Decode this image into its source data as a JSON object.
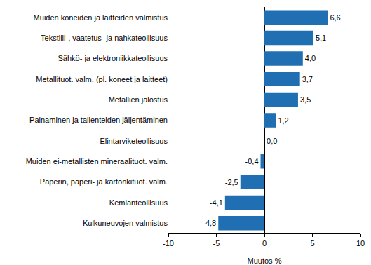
{
  "chart_data": {
    "type": "bar",
    "orientation": "horizontal",
    "categories": [
      "Muiden koneiden ja laitteiden valmistus",
      "Tekstiili-, vaatetus- ja nahkateollisuus",
      "Sähkö- ja elektroniikkateollisuus",
      "Metallituot. valm. (pl. koneet ja laitteet)",
      "Metallien jalostus",
      "Painaminen ja tallenteiden jäljentäminen",
      "Elintarviketeollisuus",
      "Muiden ei-metallisten mineraalituot. valm.",
      "Paperin, paperi- ja kartonkituot. valm.",
      "Kemianteollisuus",
      "Kulkuneuvojen valmistus"
    ],
    "values": [
      6.6,
      5.1,
      4.0,
      3.7,
      3.5,
      1.2,
      0.0,
      -0.4,
      -2.5,
      -4.1,
      -4.8
    ],
    "value_labels": [
      "6,6",
      "5,1",
      "4,0",
      "3,7",
      "3,5",
      "1,2",
      "0,0",
      "-0,4",
      "-2,5",
      "-4,1",
      "-4,8"
    ],
    "data_labels": true,
    "color": "#1f6fb2",
    "x_label": "Muutos %",
    "xlim": [
      -10,
      10
    ],
    "xticks": [
      -10,
      -5,
      0,
      5,
      10
    ],
    "grid": false
  }
}
